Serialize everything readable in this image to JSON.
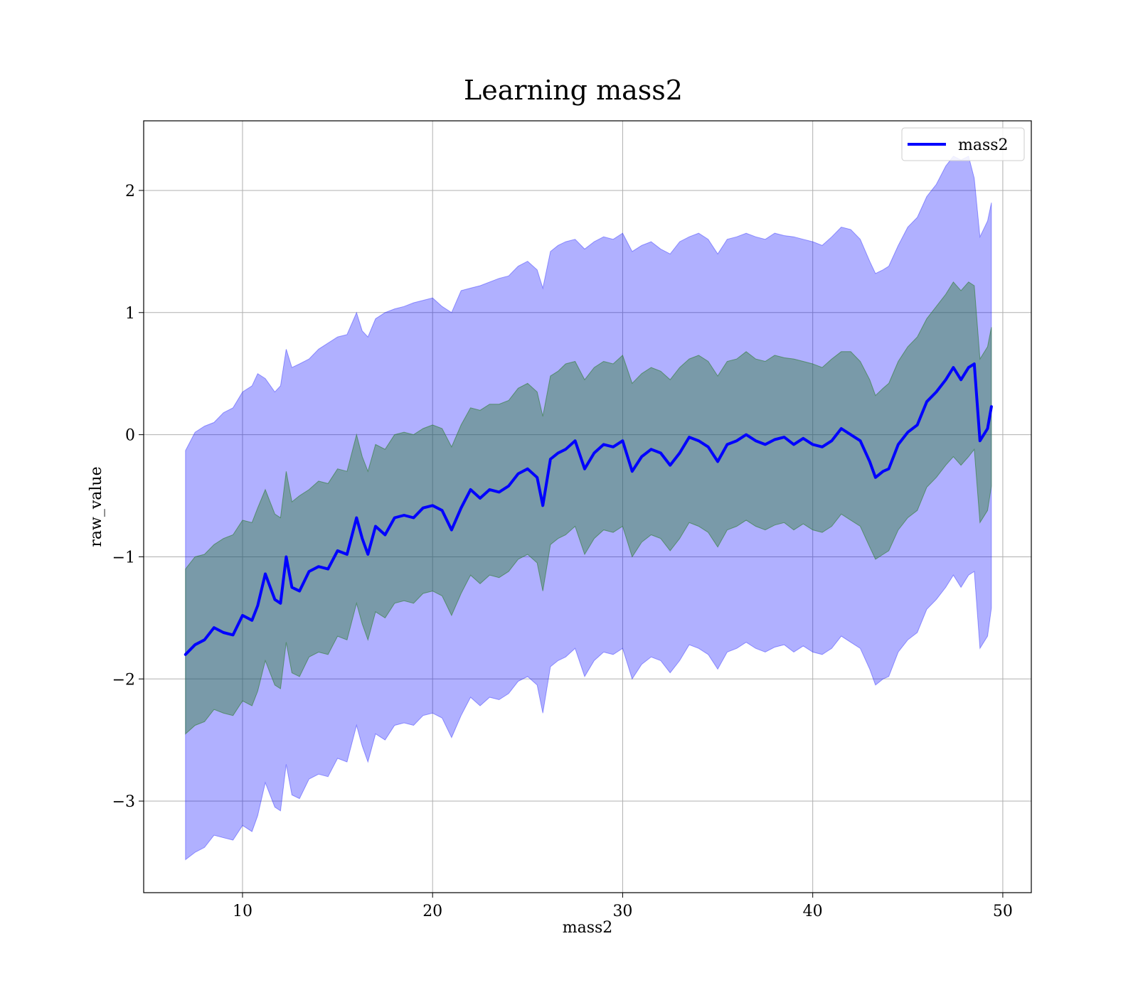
{
  "chart_data": {
    "type": "line",
    "title": "Learning mass2",
    "xlabel": "mass2",
    "ylabel": "raw_value",
    "xlim": [
      4.8,
      51.5
    ],
    "ylim": [
      -3.75,
      2.57
    ],
    "xticks": [
      10,
      20,
      30,
      40,
      50
    ],
    "xtick_labels": [
      "10",
      "20",
      "30",
      "40",
      "50"
    ],
    "yticks": [
      2,
      1,
      0,
      -1,
      -2,
      -3
    ],
    "ytick_labels": [
      "2",
      "1",
      "0",
      "−1",
      "−2",
      "−3"
    ],
    "grid": true,
    "legend": {
      "position": "top-right",
      "entries": [
        "mass2"
      ]
    },
    "colors": {
      "line": "#0000ff",
      "outer_band": "#0000ff",
      "inner_band": "#2e7d32"
    },
    "series": [
      {
        "name": "mass2",
        "x": [
          7.0,
          7.5,
          8.0,
          8.5,
          9.0,
          9.5,
          10.0,
          10.5,
          10.8,
          11.2,
          11.7,
          12.0,
          12.3,
          12.6,
          13.0,
          13.5,
          14.0,
          14.5,
          15.0,
          15.5,
          16.0,
          16.3,
          16.6,
          17.0,
          17.5,
          18.0,
          18.5,
          19.0,
          19.5,
          20.0,
          20.5,
          21.0,
          21.5,
          22.0,
          22.5,
          23.0,
          23.5,
          24.0,
          24.5,
          25.0,
          25.5,
          25.8,
          26.2,
          26.6,
          27.0,
          27.5,
          28.0,
          28.5,
          29.0,
          29.5,
          30.0,
          30.5,
          31.0,
          31.5,
          32.0,
          32.5,
          33.0,
          33.5,
          34.0,
          34.5,
          35.0,
          35.5,
          36.0,
          36.5,
          37.0,
          37.5,
          38.0,
          38.5,
          39.0,
          39.5,
          40.0,
          40.5,
          41.0,
          41.5,
          42.0,
          42.5,
          43.0,
          43.3,
          43.7,
          44.0,
          44.5,
          45.0,
          45.5,
          46.0,
          46.5,
          47.0,
          47.4,
          47.8,
          48.2,
          48.5,
          48.8,
          49.2,
          49.4
        ],
        "y": [
          -1.8,
          -1.72,
          -1.68,
          -1.58,
          -1.62,
          -1.64,
          -1.48,
          -1.52,
          -1.4,
          -1.14,
          -1.35,
          -1.38,
          -1.0,
          -1.25,
          -1.28,
          -1.12,
          -1.08,
          -1.1,
          -0.95,
          -0.98,
          -0.68,
          -0.85,
          -0.98,
          -0.75,
          -0.82,
          -0.68,
          -0.66,
          -0.68,
          -0.6,
          -0.58,
          -0.62,
          -0.78,
          -0.6,
          -0.45,
          -0.52,
          -0.45,
          -0.47,
          -0.42,
          -0.32,
          -0.28,
          -0.35,
          -0.58,
          -0.2,
          -0.15,
          -0.12,
          -0.05,
          -0.28,
          -0.15,
          -0.08,
          -0.1,
          -0.05,
          -0.3,
          -0.18,
          -0.12,
          -0.15,
          -0.25,
          -0.15,
          -0.02,
          -0.05,
          -0.1,
          -0.22,
          -0.08,
          -0.05,
          0.0,
          -0.05,
          -0.08,
          -0.04,
          -0.02,
          -0.08,
          -0.03,
          -0.08,
          -0.1,
          -0.05,
          0.05,
          0.0,
          -0.05,
          -0.22,
          -0.35,
          -0.3,
          -0.28,
          -0.08,
          0.02,
          0.08,
          0.27,
          0.35,
          0.45,
          0.55,
          0.45,
          0.55,
          0.58,
          -0.05,
          0.05,
          0.23
        ],
        "upper_outer": [
          -0.13,
          0.02,
          0.07,
          0.1,
          0.18,
          0.22,
          0.35,
          0.4,
          0.5,
          0.46,
          0.35,
          0.4,
          0.7,
          0.55,
          0.58,
          0.62,
          0.7,
          0.75,
          0.8,
          0.82,
          1.0,
          0.85,
          0.8,
          0.95,
          1.0,
          1.03,
          1.05,
          1.08,
          1.1,
          1.12,
          1.05,
          1.0,
          1.18,
          1.2,
          1.22,
          1.25,
          1.28,
          1.3,
          1.38,
          1.42,
          1.35,
          1.2,
          1.5,
          1.55,
          1.58,
          1.6,
          1.52,
          1.58,
          1.62,
          1.6,
          1.65,
          1.5,
          1.55,
          1.58,
          1.52,
          1.48,
          1.58,
          1.62,
          1.65,
          1.6,
          1.48,
          1.6,
          1.62,
          1.65,
          1.62,
          1.6,
          1.65,
          1.63,
          1.62,
          1.6,
          1.58,
          1.55,
          1.62,
          1.7,
          1.68,
          1.6,
          1.42,
          1.32,
          1.35,
          1.38,
          1.55,
          1.7,
          1.78,
          1.95,
          2.05,
          2.2,
          2.28,
          2.25,
          2.28,
          2.1,
          1.62,
          1.75,
          1.9
        ],
        "lower_outer": [
          -3.48,
          -3.42,
          -3.38,
          -3.28,
          -3.3,
          -3.32,
          -3.2,
          -3.25,
          -3.12,
          -2.85,
          -3.05,
          -3.08,
          -2.7,
          -2.95,
          -2.98,
          -2.82,
          -2.78,
          -2.8,
          -2.65,
          -2.68,
          -2.38,
          -2.55,
          -2.68,
          -2.45,
          -2.5,
          -2.38,
          -2.36,
          -2.38,
          -2.3,
          -2.28,
          -2.32,
          -2.48,
          -2.3,
          -2.15,
          -2.22,
          -2.15,
          -2.17,
          -2.12,
          -2.02,
          -1.98,
          -2.05,
          -2.28,
          -1.9,
          -1.85,
          -1.82,
          -1.75,
          -1.98,
          -1.85,
          -1.78,
          -1.8,
          -1.75,
          -2.0,
          -1.88,
          -1.82,
          -1.85,
          -1.95,
          -1.85,
          -1.72,
          -1.75,
          -1.8,
          -1.92,
          -1.78,
          -1.75,
          -1.7,
          -1.75,
          -1.78,
          -1.74,
          -1.72,
          -1.78,
          -1.73,
          -1.78,
          -1.8,
          -1.75,
          -1.65,
          -1.7,
          -1.75,
          -1.92,
          -2.05,
          -2.0,
          -1.98,
          -1.78,
          -1.68,
          -1.62,
          -1.43,
          -1.35,
          -1.25,
          -1.15,
          -1.25,
          -1.15,
          -1.12,
          -1.75,
          -1.65,
          -1.42
        ],
        "upper_inner": [
          -1.1,
          -1.0,
          -0.98,
          -0.9,
          -0.85,
          -0.82,
          -0.7,
          -0.72,
          -0.6,
          -0.45,
          -0.65,
          -0.68,
          -0.3,
          -0.55,
          -0.5,
          -0.45,
          -0.38,
          -0.4,
          -0.28,
          -0.3,
          0.0,
          -0.18,
          -0.3,
          -0.08,
          -0.12,
          0.0,
          0.02,
          0.0,
          0.05,
          0.08,
          0.05,
          -0.1,
          0.08,
          0.22,
          0.2,
          0.25,
          0.25,
          0.28,
          0.38,
          0.42,
          0.35,
          0.15,
          0.48,
          0.52,
          0.58,
          0.6,
          0.45,
          0.55,
          0.6,
          0.58,
          0.65,
          0.42,
          0.5,
          0.55,
          0.52,
          0.45,
          0.55,
          0.62,
          0.65,
          0.6,
          0.48,
          0.6,
          0.62,
          0.68,
          0.62,
          0.6,
          0.65,
          0.63,
          0.62,
          0.6,
          0.58,
          0.55,
          0.62,
          0.68,
          0.68,
          0.6,
          0.45,
          0.32,
          0.38,
          0.42,
          0.6,
          0.72,
          0.8,
          0.95,
          1.05,
          1.15,
          1.25,
          1.18,
          1.25,
          1.22,
          0.62,
          0.72,
          0.88
        ],
        "lower_inner": [
          -2.45,
          -2.38,
          -2.35,
          -2.25,
          -2.28,
          -2.3,
          -2.18,
          -2.22,
          -2.1,
          -1.85,
          -2.05,
          -2.08,
          -1.7,
          -1.95,
          -1.98,
          -1.82,
          -1.78,
          -1.8,
          -1.65,
          -1.68,
          -1.38,
          -1.55,
          -1.68,
          -1.45,
          -1.5,
          -1.38,
          -1.36,
          -1.38,
          -1.3,
          -1.28,
          -1.32,
          -1.48,
          -1.3,
          -1.15,
          -1.22,
          -1.15,
          -1.17,
          -1.12,
          -1.02,
          -0.98,
          -1.05,
          -1.28,
          -0.9,
          -0.85,
          -0.82,
          -0.75,
          -0.98,
          -0.85,
          -0.78,
          -0.8,
          -0.75,
          -1.0,
          -0.88,
          -0.82,
          -0.85,
          -0.95,
          -0.85,
          -0.72,
          -0.75,
          -0.8,
          -0.92,
          -0.78,
          -0.75,
          -0.7,
          -0.75,
          -0.78,
          -0.74,
          -0.72,
          -0.78,
          -0.73,
          -0.78,
          -0.8,
          -0.75,
          -0.65,
          -0.7,
          -0.75,
          -0.92,
          -1.02,
          -0.98,
          -0.95,
          -0.78,
          -0.68,
          -0.62,
          -0.43,
          -0.35,
          -0.25,
          -0.18,
          -0.25,
          -0.18,
          -0.12,
          -0.72,
          -0.62,
          -0.42
        ]
      }
    ]
  }
}
